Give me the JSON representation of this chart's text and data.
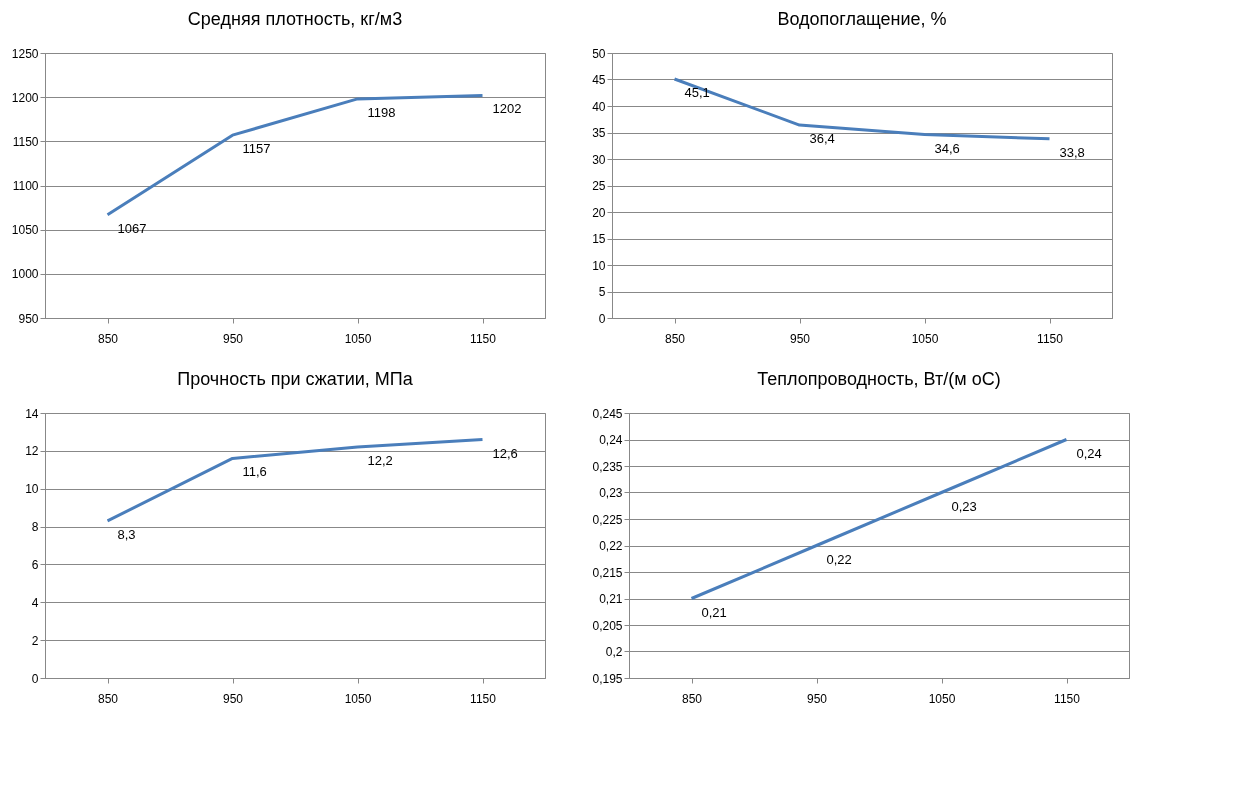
{
  "chart_data": [
    {
      "type": "line",
      "title": "Средняя плотность, кг/м3",
      "categories": [
        "850",
        "950",
        "1050",
        "1150"
      ],
      "series": [
        {
          "color": "#4a7ebb",
          "values": [
            1067,
            1157,
            1198,
            1202
          ]
        }
      ],
      "ylim": [
        950,
        1250
      ],
      "yticks": [
        950,
        1000,
        1050,
        1100,
        1150,
        1200,
        1250
      ],
      "grid": "y",
      "data_labels": true,
      "line_style": "solid",
      "marker": "none"
    },
    {
      "type": "line",
      "title": "Водопоглащение, %",
      "categories": [
        "850",
        "950",
        "1050",
        "1150"
      ],
      "series": [
        {
          "color": "#4a7ebb",
          "values": [
            45.1,
            36.4,
            34.6,
            33.8
          ],
          "value_labels": [
            "45,1",
            "36,4",
            "34,6",
            "33,8"
          ]
        }
      ],
      "ylim": [
        0,
        50
      ],
      "yticks": [
        0,
        5,
        10,
        15,
        20,
        25,
        30,
        35,
        40,
        45,
        50
      ],
      "grid": "y",
      "line_style": "solid",
      "marker": "none"
    },
    {
      "type": "line",
      "title": "Прочность при сжатии, МПа",
      "categories": [
        "850",
        "950",
        "1050",
        "1150"
      ],
      "series": [
        {
          "color": "#4a7ebb",
          "values": [
            8.3,
            11.6,
            12.2,
            12.6
          ],
          "value_labels": [
            "8,3",
            "11,6",
            "12,2",
            "12,6"
          ]
        }
      ],
      "ylim": [
        0,
        14
      ],
      "yticks": [
        0,
        2,
        4,
        6,
        8,
        10,
        12,
        14
      ],
      "grid": "y",
      "line_style": "solid",
      "marker": "none"
    },
    {
      "type": "line",
      "title": "Теплопроводность, Вт/(м оС)",
      "categories": [
        "850",
        "950",
        "1050",
        "1150"
      ],
      "series": [
        {
          "color": "#4a7ebb",
          "values": [
            0.21,
            0.22,
            0.23,
            0.24
          ],
          "value_labels": [
            "0,21",
            "0,22",
            "0,23",
            "0,24"
          ]
        }
      ],
      "ylim": [
        0.195,
        0.245
      ],
      "yticks": [
        {
          "value": 0.195,
          "label": "0,195"
        },
        {
          "value": 0.2,
          "label": "0,2"
        },
        {
          "value": 0.205,
          "label": "0,205"
        },
        {
          "value": 0.21,
          "label": "0,21"
        },
        {
          "value": 0.215,
          "label": "0,215"
        },
        {
          "value": 0.22,
          "label": "0,22"
        },
        {
          "value": 0.225,
          "label": "0,225"
        },
        {
          "value": 0.23,
          "label": "0,23"
        },
        {
          "value": 0.235,
          "label": "0,235"
        },
        {
          "value": 0.24,
          "label": "0,24"
        },
        {
          "value": 0.245,
          "label": "0,245"
        }
      ],
      "grid": "y",
      "line_style": "solid",
      "marker": "none"
    }
  ]
}
